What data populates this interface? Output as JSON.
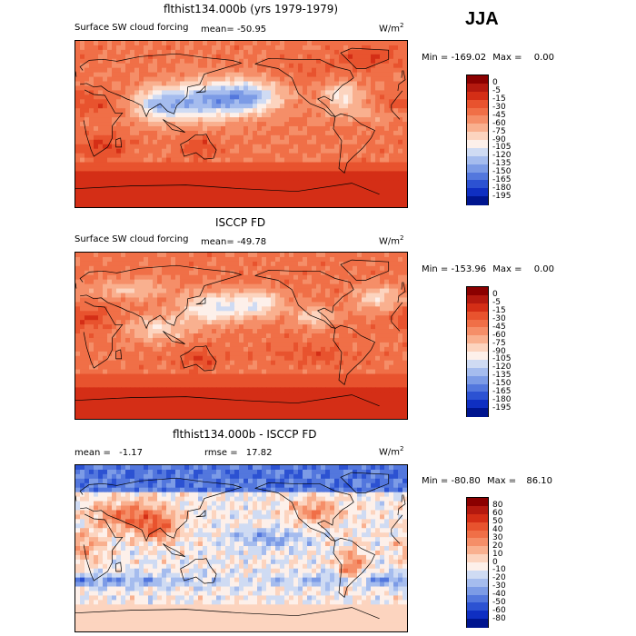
{
  "season": "JJA",
  "chart_data": [
    {
      "type": "heatmap",
      "title": "flthist134.000b (yrs 1979-1979)",
      "subtitle": "Surface SW cloud forcing",
      "mean_label": "mean=",
      "mean": "-50.95",
      "units": "W/m",
      "units_exp": "2",
      "min_label": "Min =",
      "min": "-169.02",
      "max_label": "Max =",
      "max": "0.00",
      "levels": [
        "0",
        "-5",
        "-15",
        "-30",
        "-45",
        "-60",
        "-75",
        "-90",
        "-105",
        "-120",
        "-135",
        "-150",
        "-165",
        "-180",
        "-195"
      ],
      "colors": [
        "#8b0000",
        "#b4190f",
        "#d42e16",
        "#e8532e",
        "#f06f47",
        "#f58e68",
        "#f9b08f",
        "#fcd4bf",
        "#fdf0ea",
        "#cfdbf3",
        "#a5bcee",
        "#7c9be6",
        "#5377dd",
        "#2c52d2",
        "#0f2fc2",
        "#00158f"
      ],
      "pattern": "control"
    },
    {
      "type": "heatmap",
      "title": "ISCCP FD",
      "subtitle": "Surface SW cloud forcing",
      "mean_label": "mean=",
      "mean": "-49.78",
      "units": "W/m",
      "units_exp": "2",
      "min_label": "Min =",
      "min": "-153.96",
      "max_label": "Max =",
      "max": "0.00",
      "levels": [
        "0",
        "-5",
        "-15",
        "-30",
        "-45",
        "-60",
        "-75",
        "-90",
        "-105",
        "-120",
        "-135",
        "-150",
        "-165",
        "-180",
        "-195"
      ],
      "colors": [
        "#8b0000",
        "#b4190f",
        "#d42e16",
        "#e8532e",
        "#f06f47",
        "#f58e68",
        "#f9b08f",
        "#fcd4bf",
        "#fdf0ea",
        "#cfdbf3",
        "#a5bcee",
        "#7c9be6",
        "#5377dd",
        "#2c52d2",
        "#0f2fc2",
        "#00158f"
      ],
      "pattern": "obs"
    },
    {
      "type": "heatmap",
      "title": "flthist134.000b - ISCCP FD",
      "mean_label": "mean =",
      "mean": "-1.17",
      "rmse_label": "rmse =",
      "rmse": "17.82",
      "units": "W/m",
      "units_exp": "2",
      "min_label": "Min =",
      "min": "-80.80",
      "max_label": "Max =",
      "max": "86.10",
      "levels": [
        "80",
        "60",
        "50",
        "40",
        "30",
        "20",
        "10",
        "0",
        "-10",
        "-20",
        "-30",
        "-40",
        "-50",
        "-60",
        "-80"
      ],
      "colors": [
        "#8b0000",
        "#b4190f",
        "#d42e16",
        "#e8532e",
        "#f06f47",
        "#f58e68",
        "#f9b08f",
        "#fcd4bf",
        "#fdf0ea",
        "#cfdbf3",
        "#a5bcee",
        "#7c9be6",
        "#5377dd",
        "#2c52d2",
        "#0f2fc2",
        "#00158f"
      ],
      "pattern": "diff"
    }
  ]
}
